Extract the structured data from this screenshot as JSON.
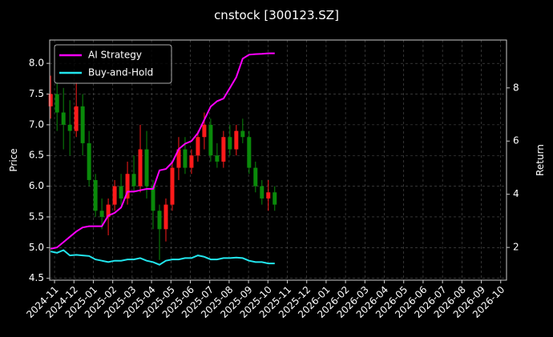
{
  "chart_data": {
    "type": "candlestick",
    "title": "cnstock [300123.SZ]",
    "y_label": "Price",
    "y2_label": "Return",
    "x": [
      -0.2,
      0.13,
      0.46,
      0.79,
      1.12,
      1.45,
      1.78,
      2.11,
      2.44,
      2.77,
      3.1,
      3.43,
      3.76,
      4.09,
      4.42,
      4.75,
      5.08,
      5.41,
      5.74,
      6.07,
      6.4,
      6.73,
      7.06,
      7.39,
      7.72,
      8.05,
      8.38,
      8.71,
      9.04,
      9.37,
      9.7,
      10.03,
      10.36,
      10.69,
      11.02,
      11.35
    ],
    "ohlc": {
      "open": [
        7.3,
        7.5,
        7.2,
        7.0,
        6.9,
        7.3,
        6.7,
        6.1,
        5.6,
        5.5,
        5.7,
        6.0,
        5.8,
        6.2,
        6.0,
        6.6,
        6.0,
        5.6,
        5.3,
        5.7,
        6.3,
        6.6,
        6.3,
        6.5,
        6.8,
        7.0,
        6.5,
        6.4,
        6.8,
        6.6,
        6.9,
        6.8,
        6.3,
        6.0,
        5.8,
        5.9
      ],
      "high": [
        7.8,
        7.7,
        7.6,
        7.4,
        7.7,
        7.5,
        6.9,
        6.2,
        5.8,
        5.8,
        6.1,
        6.2,
        6.4,
        6.5,
        7.0,
        6.9,
        6.1,
        5.7,
        5.8,
        6.4,
        6.8,
        6.8,
        6.6,
        6.9,
        7.2,
        7.1,
        6.7,
        6.9,
        7.0,
        7.0,
        7.1,
        6.9,
        6.4,
        6.1,
        6.1,
        6.0
      ],
      "low": [
        7.1,
        6.9,
        6.6,
        6.5,
        6.8,
        6.5,
        6.0,
        5.5,
        5.3,
        5.2,
        5.6,
        5.7,
        5.7,
        5.9,
        5.9,
        5.8,
        5.3,
        4.8,
        5.1,
        5.6,
        6.1,
        6.2,
        6.2,
        6.4,
        6.6,
        6.4,
        6.3,
        6.3,
        6.5,
        6.5,
        6.7,
        6.2,
        5.9,
        5.7,
        5.6,
        5.6
      ],
      "close": [
        7.5,
        7.2,
        7.0,
        6.9,
        7.3,
        6.7,
        6.1,
        5.6,
        5.5,
        5.7,
        6.0,
        5.8,
        6.2,
        6.0,
        6.6,
        6.0,
        5.6,
        5.3,
        5.7,
        6.3,
        6.6,
        6.3,
        6.5,
        6.8,
        7.0,
        6.5,
        6.4,
        6.8,
        6.6,
        6.9,
        6.8,
        6.3,
        6.0,
        5.8,
        5.9,
        5.7
      ]
    },
    "up_color": "#ff1a1a",
    "down_color": "#0a8a0a",
    "series": [
      {
        "name": "AI Strategy",
        "color": "#ff00ff",
        "axis": "y2",
        "values": [
          1.95,
          2.0,
          2.2,
          2.4,
          2.6,
          2.75,
          2.8,
          2.8,
          2.8,
          3.2,
          3.3,
          3.5,
          4.1,
          4.1,
          4.15,
          4.2,
          4.2,
          4.9,
          4.95,
          5.2,
          5.7,
          5.9,
          6.0,
          6.3,
          6.8,
          7.3,
          7.5,
          7.6,
          8.0,
          8.4,
          9.1,
          9.25,
          9.27,
          9.28,
          9.3,
          9.3
        ]
      },
      {
        "name": "Buy-and-Hold",
        "color": "#22e6ee",
        "axis": "y2",
        "values": [
          1.85,
          1.8,
          1.9,
          1.7,
          1.72,
          1.7,
          1.68,
          1.55,
          1.5,
          1.45,
          1.5,
          1.5,
          1.55,
          1.55,
          1.6,
          1.5,
          1.45,
          1.35,
          1.5,
          1.55,
          1.55,
          1.6,
          1.6,
          1.7,
          1.65,
          1.55,
          1.55,
          1.6,
          1.6,
          1.62,
          1.6,
          1.5,
          1.45,
          1.45,
          1.4,
          1.4
        ]
      }
    ],
    "xlim": [
      -0.25,
      23.3
    ],
    "xticks": [
      {
        "value": 0,
        "label": "2024-11"
      },
      {
        "value": 1,
        "label": "2024-12"
      },
      {
        "value": 2,
        "label": "2025-01"
      },
      {
        "value": 3,
        "label": "2025-02"
      },
      {
        "value": 4,
        "label": "2025-03"
      },
      {
        "value": 5,
        "label": "2025-04"
      },
      {
        "value": 6,
        "label": "2025-05"
      },
      {
        "value": 7,
        "label": "2025-06"
      },
      {
        "value": 8,
        "label": "2025-07"
      },
      {
        "value": 9,
        "label": "2025-08"
      },
      {
        "value": 10,
        "label": "2025-09"
      },
      {
        "value": 11,
        "label": "2025-10"
      },
      {
        "value": 12,
        "label": "2025-11"
      },
      {
        "value": 13,
        "label": "2025-12"
      },
      {
        "value": 14,
        "label": "2026-01"
      },
      {
        "value": 15,
        "label": "2026-02"
      },
      {
        "value": 16,
        "label": "2026-03"
      },
      {
        "value": 17,
        "label": "2026-04"
      },
      {
        "value": 18,
        "label": "2026-05"
      },
      {
        "value": 19,
        "label": "2026-06"
      },
      {
        "value": 20,
        "label": "2026-07"
      },
      {
        "value": 21,
        "label": "2026-08"
      },
      {
        "value": 22,
        "label": "2026-09"
      },
      {
        "value": 23,
        "label": "2026-10"
      }
    ],
    "ylim": [
      4.47,
      8.38
    ],
    "yticks": [
      {
        "value": 4.5,
        "label": "4.5"
      },
      {
        "value": 5,
        "label": "5.0"
      },
      {
        "value": 5.5,
        "label": "5.5"
      },
      {
        "value": 6,
        "label": "6.0"
      },
      {
        "value": 6.5,
        "label": "6.5"
      },
      {
        "value": 7,
        "label": "7.0"
      },
      {
        "value": 7.5,
        "label": "7.5"
      },
      {
        "value": 8,
        "label": "8.0"
      }
    ],
    "y2lim": [
      0.77,
      9.8
    ],
    "y2ticks": [
      2,
      4,
      6,
      8
    ],
    "grid": true,
    "legend": "upper left"
  }
}
